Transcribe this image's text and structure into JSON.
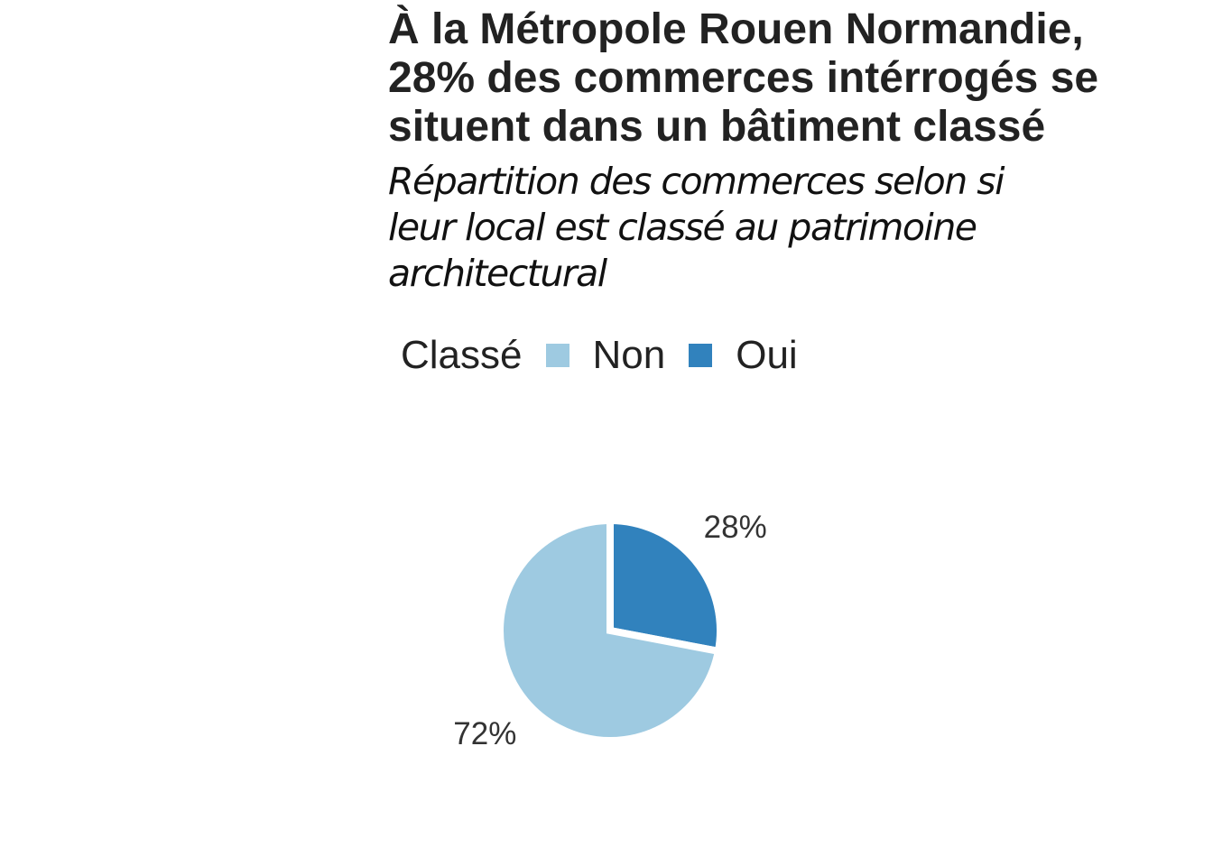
{
  "title_lines": [
    "À la Métropole Rouen Normandie,",
    "28% des commerces intérrogés se",
    "situent dans un bâtiment classé"
  ],
  "subtitle_lines": [
    "Répartition des commerces selon si",
    "leur local est classé au patrimoine",
    "architectural"
  ],
  "legend": {
    "title": "Classé",
    "items": [
      {
        "label": "Non",
        "color": "#9ecae1"
      },
      {
        "label": "Oui",
        "color": "#3182bd"
      }
    ]
  },
  "chart_data": {
    "type": "pie",
    "title": "À la Métropole Rouen Normandie, 28% des commerces intérrogés se situent dans un bâtiment classé",
    "subtitle": "Répartition des commerces selon si leur local est classé au patrimoine architectural",
    "legend_title": "Classé",
    "legend_position": "top",
    "slices": [
      {
        "category": "Oui",
        "value": 28,
        "label": "28%",
        "color": "#3182bd"
      },
      {
        "category": "Non",
        "value": 72,
        "label": "72%",
        "color": "#9ecae1"
      }
    ]
  }
}
